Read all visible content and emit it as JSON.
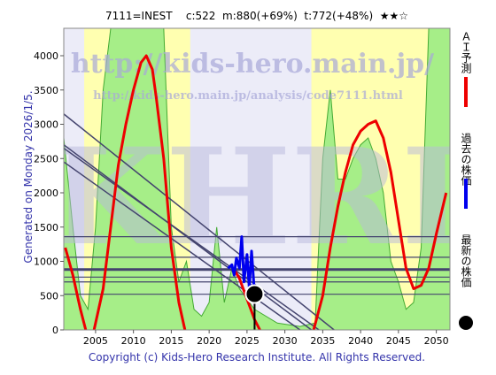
{
  "chart_data": {
    "type": "line",
    "title": "7111=INEST    c:522  m:880(+69%)  t:772(+48%)  ★★☆",
    "side_note": "Generated on Monday 2026/1/5.",
    "copyright": "Copyright (c) Kids-Hero Research Institute. All Rights Reserved.",
    "watermarks": [
      "http://kids-hero.main.jp/",
      "http://kids-hero.main.jp/analysis/code7111.html",
      "KHRI"
    ],
    "xlim": [
      2000.8,
      2051.8
    ],
    "ylim": [
      0,
      4400
    ],
    "xticks": [
      2005,
      2010,
      2015,
      2020,
      2025,
      2030,
      2035,
      2040,
      2045,
      2050
    ],
    "yticks": [
      0,
      500,
      1000,
      1500,
      2000,
      2500,
      3000,
      3500,
      4000
    ],
    "bands": [
      {
        "color": "#ffffb0",
        "x": [
          2003.5,
          2017.5
        ]
      },
      {
        "color": "#ffffb0",
        "x": [
          2033.5,
          2049.5
        ]
      }
    ],
    "areas": [
      {
        "color": "#a6ee88",
        "edge": "#44aa33",
        "x": [
          2000.8,
          2002,
          2003,
          2004,
          2005,
          2006,
          2007,
          2014,
          2015,
          2016,
          2017,
          2018,
          2019,
          2020,
          2021,
          2022,
          2023,
          2024,
          2026,
          2029,
          2032,
          2034,
          2035,
          2036,
          2037,
          2038,
          2039,
          2040,
          2041,
          2042,
          2043,
          2044,
          2045,
          2046,
          2047,
          2048,
          2049,
          2051.8
        ],
        "values": [
          2800,
          1500,
          500,
          300,
          1500,
          3500,
          4400,
          4400,
          1500,
          700,
          1000,
          300,
          200,
          400,
          1500,
          400,
          900,
          600,
          300,
          100,
          50,
          100,
          2500,
          3500,
          2200,
          2200,
          2500,
          2700,
          2800,
          2500,
          2000,
          1000,
          700,
          300,
          400,
          1200,
          4400,
          4400
        ]
      }
    ],
    "levels": [
      1360,
      1060,
      880,
      770,
      700,
      520
    ],
    "level_color": "#44446e",
    "main_level": 880,
    "trend_lines": [
      {
        "x": [
          2000.8,
          2036.5
        ],
        "values": [
          3150,
          0
        ]
      },
      {
        "x": [
          2000.8,
          2033.5
        ],
        "values": [
          2700,
          0
        ]
      },
      {
        "x": [
          2000.8,
          2034.5
        ],
        "values": [
          2650,
          0
        ]
      },
      {
        "x": [
          2000.8,
          2032
        ],
        "values": [
          2450,
          0
        ]
      }
    ],
    "series": [
      {
        "name": "ＡＩ予測",
        "color": "#ee0000",
        "x": [
          2001,
          2002,
          2003,
          2003.7,
          2004.3,
          2004.8,
          2006,
          2007,
          2008,
          2009,
          2010,
          2011,
          2011.7,
          2012.5,
          2013,
          2014,
          2015,
          2016,
          2016.8,
          2020,
          2023.2,
          2024,
          2025,
          2026,
          2026.7,
          2030,
          2033.8,
          2035,
          2036,
          2037,
          2038,
          2039,
          2040,
          2041,
          2042,
          2043,
          2044,
          2045,
          2046,
          2047,
          2048,
          2049,
          2050,
          2051.3
        ],
        "values": [
          1200,
          800,
          300,
          0,
          null,
          0,
          600,
          1500,
          2400,
          3000,
          3500,
          3900,
          4000,
          3800,
          3400,
          2500,
          1200,
          400,
          0,
          null,
          900,
          750,
          450,
          150,
          0,
          null,
          0,
          500,
          1200,
          1800,
          2300,
          2700,
          2900,
          3000,
          3050,
          2800,
          2300,
          1600,
          900,
          600,
          650,
          900,
          1400,
          2000
        ]
      },
      {
        "name": "過去の株価",
        "color": "#0000ee",
        "x": [
          2022.5,
          2023,
          2023.3,
          2023.6,
          2024,
          2024.3,
          2024.6,
          2025,
          2025.3,
          2025.6,
          2026
        ],
        "values": [
          900,
          950,
          800,
          1050,
          900,
          1360,
          700,
          1100,
          600,
          1150,
          522
        ]
      }
    ],
    "latest": {
      "name": "最新の株価",
      "color": "#000000",
      "x": 2026,
      "value": 522
    }
  }
}
